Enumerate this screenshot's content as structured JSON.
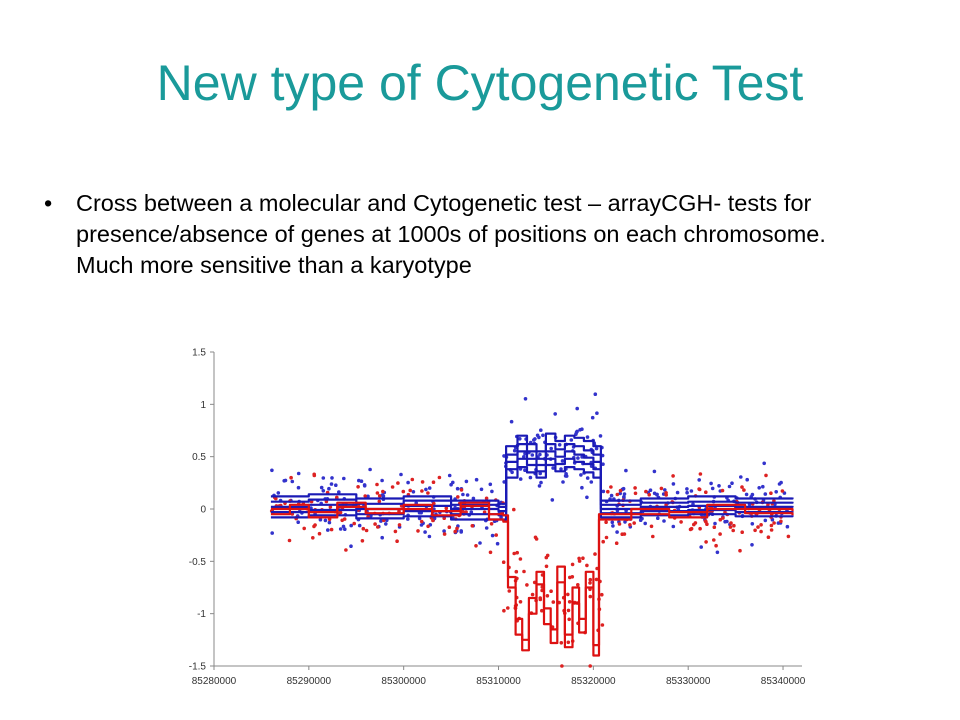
{
  "slide": {
    "title": "New type of Cytogenetic Test",
    "bullet_symbol": "•",
    "bullet_text": "Cross between a molecular and Cytogenetic test – arrayCGH- tests for presence/absence of genes at 1000s of positions on each chromosome. Much more sensitive than a karyotype"
  },
  "chart_data": {
    "type": "scatter",
    "title": "",
    "xlabel": "",
    "ylabel": "",
    "xlim": [
      85280000,
      85342000
    ],
    "ylim": [
      -1.5,
      1.5
    ],
    "x_ticks": [
      85280000,
      85290000,
      85300000,
      85310000,
      85320000,
      85330000,
      85340000
    ],
    "y_ticks": [
      1.5,
      1,
      0.5,
      0,
      -0.5,
      -1,
      -1.5
    ],
    "x_tick_labels": [
      "85280000",
      "85290000",
      "85300000",
      "85310000",
      "85320000",
      "85330000",
      "85340000"
    ],
    "y_tick_labels": [
      "1.5",
      "1",
      "0.5",
      "0",
      "-0.5",
      "-1",
      "-1.5"
    ],
    "grid": false,
    "legend": "none",
    "series": [
      {
        "kind": "points",
        "color": "#3333cc",
        "segments": [
          {
            "x0": 85286000,
            "x1": 85310500,
            "mean": 0.03,
            "spread": 0.32,
            "n": 150
          },
          {
            "x0": 85310500,
            "x1": 85321000,
            "mean": 0.55,
            "spread": 0.38,
            "n": 95
          },
          {
            "x0": 85321000,
            "x1": 85341000,
            "mean": 0.02,
            "spread": 0.3,
            "n": 125
          }
        ]
      },
      {
        "kind": "points",
        "color": "#dd2222",
        "segments": [
          {
            "x0": 85286000,
            "x1": 85310500,
            "mean": -0.03,
            "spread": 0.3,
            "n": 120
          },
          {
            "x0": 85310500,
            "x1": 85321000,
            "mean": -0.85,
            "spread": 0.55,
            "n": 80
          },
          {
            "x0": 85321000,
            "x1": 85341000,
            "mean": -0.04,
            "spread": 0.3,
            "n": 110
          }
        ]
      },
      {
        "kind": "segment-lines",
        "color": "#1a1ab5",
        "lines": [
          {
            "x": [
              85286000,
              85290000,
              85295000,
              85300000,
              85305000,
              85310000,
              85310800,
              85312000,
              85313000,
              85314000,
              85315000,
              85316000,
              85317000,
              85318000,
              85319000,
              85320000,
              85320800,
              85325000,
              85330000,
              85335000,
              85341000
            ],
            "y": [
              0.12,
              0.14,
              0.1,
              0.12,
              0.08,
              0.05,
              0.6,
              0.7,
              0.62,
              0.55,
              0.72,
              0.65,
              0.7,
              0.68,
              0.65,
              0.6,
              0.08,
              0.1,
              0.12,
              0.1,
              0.11
            ]
          },
          {
            "x": [
              85286000,
              85290000,
              85295000,
              85300000,
              85305000,
              85310000,
              85310800,
              85312000,
              85313000,
              85314000,
              85315000,
              85316000,
              85317000,
              85318000,
              85319000,
              85320000,
              85320800,
              85325000,
              85330000,
              85335000,
              85341000
            ],
            "y": [
              0.07,
              0.09,
              0.05,
              0.08,
              0.04,
              0.02,
              0.52,
              0.62,
              0.55,
              0.48,
              0.62,
              0.57,
              0.62,
              0.6,
              0.56,
              0.52,
              0.04,
              0.06,
              0.07,
              0.06,
              0.07
            ]
          },
          {
            "x": [
              85286000,
              85290000,
              85295000,
              85300000,
              85305000,
              85310000,
              85310800,
              85312000,
              85313000,
              85314000,
              85315000,
              85316000,
              85317000,
              85318000,
              85319000,
              85320000,
              85320800,
              85325000,
              85330000,
              85335000,
              85341000
            ],
            "y": [
              0.02,
              0.04,
              0.0,
              0.03,
              0.0,
              -0.02,
              0.45,
              0.55,
              0.48,
              0.42,
              0.55,
              0.5,
              0.55,
              0.52,
              0.49,
              0.45,
              0.0,
              0.02,
              0.03,
              0.02,
              0.03
            ]
          },
          {
            "x": [
              85286000,
              85290000,
              85295000,
              85300000,
              85305000,
              85310000,
              85310800,
              85312000,
              85313000,
              85314000,
              85315000,
              85316000,
              85317000,
              85318000,
              85319000,
              85320000,
              85320800,
              85325000,
              85330000,
              85335000,
              85341000
            ],
            "y": [
              -0.03,
              -0.01,
              -0.05,
              -0.02,
              -0.05,
              -0.06,
              0.38,
              0.48,
              0.42,
              0.36,
              0.48,
              0.43,
              0.48,
              0.45,
              0.43,
              0.38,
              -0.04,
              -0.02,
              -0.01,
              -0.03,
              -0.02
            ]
          },
          {
            "x": [
              85286000,
              85290000,
              85295000,
              85300000,
              85305000,
              85310000,
              85310800,
              85312000,
              85313000,
              85314000,
              85315000,
              85316000,
              85317000,
              85318000,
              85319000,
              85320000,
              85320800,
              85325000,
              85330000,
              85335000,
              85341000
            ],
            "y": [
              -0.08,
              -0.06,
              -0.09,
              -0.07,
              -0.1,
              -0.1,
              0.3,
              0.4,
              0.35,
              0.3,
              0.42,
              0.36,
              0.4,
              0.38,
              0.35,
              0.3,
              -0.08,
              -0.06,
              -0.05,
              -0.07,
              -0.06
            ]
          }
        ]
      },
      {
        "kind": "segment-lines",
        "color": "#dd1111",
        "lines": [
          {
            "x": [
              85286000,
              85288000,
              85290000,
              85293000,
              85296000,
              85300000,
              85303000,
              85306000,
              85309000,
              85310500,
              85311000,
              85311800,
              85312500,
              85313200,
              85314000,
              85314800,
              85315500,
              85316200,
              85317000,
              85317800,
              85318500,
              85319200,
              85320000,
              85320600,
              85324000,
              85328000,
              85332000,
              85336000,
              85341000
            ],
            "y": [
              -0.05,
              0.0,
              -0.08,
              0.02,
              -0.04,
              0.0,
              -0.06,
              0.03,
              -0.1,
              -0.12,
              -0.65,
              -1.05,
              -1.25,
              -0.85,
              -0.6,
              -0.95,
              -1.15,
              -0.55,
              -1.2,
              -0.75,
              -1.05,
              -0.6,
              -1.4,
              -0.1,
              -0.05,
              -0.08,
              0.0,
              -0.04,
              -0.06
            ]
          },
          {
            "x": [
              85286000,
              85288000,
              85290000,
              85293000,
              85296000,
              85300000,
              85303000,
              85306000,
              85309000,
              85310500,
              85311000,
              85311800,
              85312500,
              85313200,
              85314000,
              85314800,
              85315500,
              85316200,
              85317000,
              85317800,
              85318500,
              85319200,
              85320000,
              85320600,
              85324000,
              85328000,
              85332000,
              85336000,
              85341000
            ],
            "y": [
              0.0,
              0.04,
              -0.03,
              0.06,
              0.0,
              0.04,
              -0.02,
              0.06,
              -0.05,
              -0.06,
              -0.75,
              -1.2,
              -1.35,
              -1.0,
              -0.72,
              -1.1,
              -1.28,
              -0.7,
              -1.32,
              -0.9,
              -1.18,
              -0.75,
              -1.3,
              -0.05,
              0.0,
              -0.03,
              0.04,
              0.0,
              -0.02
            ]
          }
        ]
      }
    ]
  }
}
